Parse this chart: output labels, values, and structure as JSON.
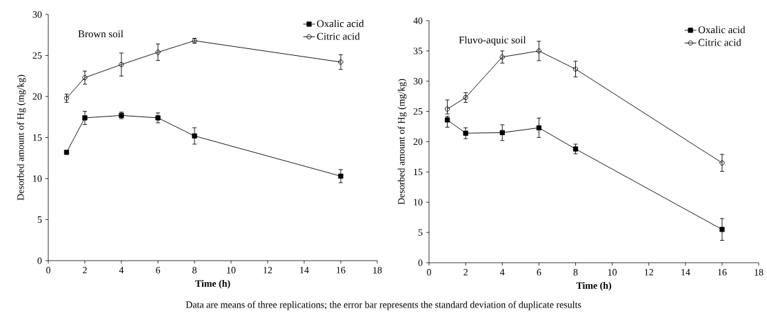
{
  "chart_data": [
    {
      "type": "line",
      "title": "Brown soil",
      "xlabel": "Time (h)",
      "ylabel": "Desorbed amount of Hg (mg/kg)",
      "xlim": [
        0,
        18
      ],
      "xticks": [
        0,
        2,
        4,
        6,
        8,
        10,
        12,
        14,
        16,
        18
      ],
      "ylim": [
        0,
        30
      ],
      "yticks": [
        0,
        5,
        10,
        15,
        20,
        25,
        30
      ],
      "legend": "top right",
      "x": [
        1,
        2,
        4,
        6,
        8,
        16
      ],
      "series": [
        {
          "name": "Oxalic acid",
          "color": "#000000",
          "marker": "square",
          "values": [
            13.2,
            17.4,
            17.7,
            17.4,
            15.2,
            10.3
          ],
          "errors": [
            null,
            0.8,
            0.4,
            0.6,
            1.0,
            0.8
          ]
        },
        {
          "name": "Citric acid",
          "color": "#000000",
          "marker": "circle",
          "values": [
            19.8,
            22.3,
            23.9,
            25.4,
            26.8,
            24.2
          ],
          "errors": [
            0.5,
            0.8,
            1.4,
            1.0,
            0.3,
            0.9
          ]
        }
      ],
      "annotations": [
        "Data are means of three replications; the error bar represents the standard deviation of duplicate results"
      ]
    },
    {
      "type": "line",
      "title": "Fluvo-aquic soil",
      "xlabel": "Time (h)",
      "ylabel": "Desorbed amount of Hg (mg/kg)",
      "xlim": [
        0,
        18
      ],
      "xticks": [
        0,
        2,
        4,
        6,
        8,
        10,
        12,
        14,
        16,
        18
      ],
      "ylim": [
        0,
        40
      ],
      "yticks": [
        0,
        5,
        10,
        15,
        20,
        25,
        30,
        35,
        40
      ],
      "legend": "top right",
      "x": [
        1,
        2,
        4,
        6,
        8,
        16
      ],
      "series": [
        {
          "name": "Oxalic acid",
          "color": "#000000",
          "marker": "square",
          "values": [
            23.6,
            21.4,
            21.5,
            22.3,
            18.8,
            5.5
          ],
          "errors": [
            [
              22.4,
              24.2
            ],
            0.9,
            1.3,
            1.6,
            0.8,
            1.8
          ]
        },
        {
          "name": "Citric acid",
          "color": "#000000",
          "marker": "circle",
          "values": [
            25.4,
            27.3,
            34.0,
            35.0,
            32.0,
            16.5
          ],
          "errors": [
            [
              24.6,
              26.9
            ],
            0.8,
            1.0,
            1.6,
            1.3,
            1.4
          ]
        }
      ]
    }
  ]
}
